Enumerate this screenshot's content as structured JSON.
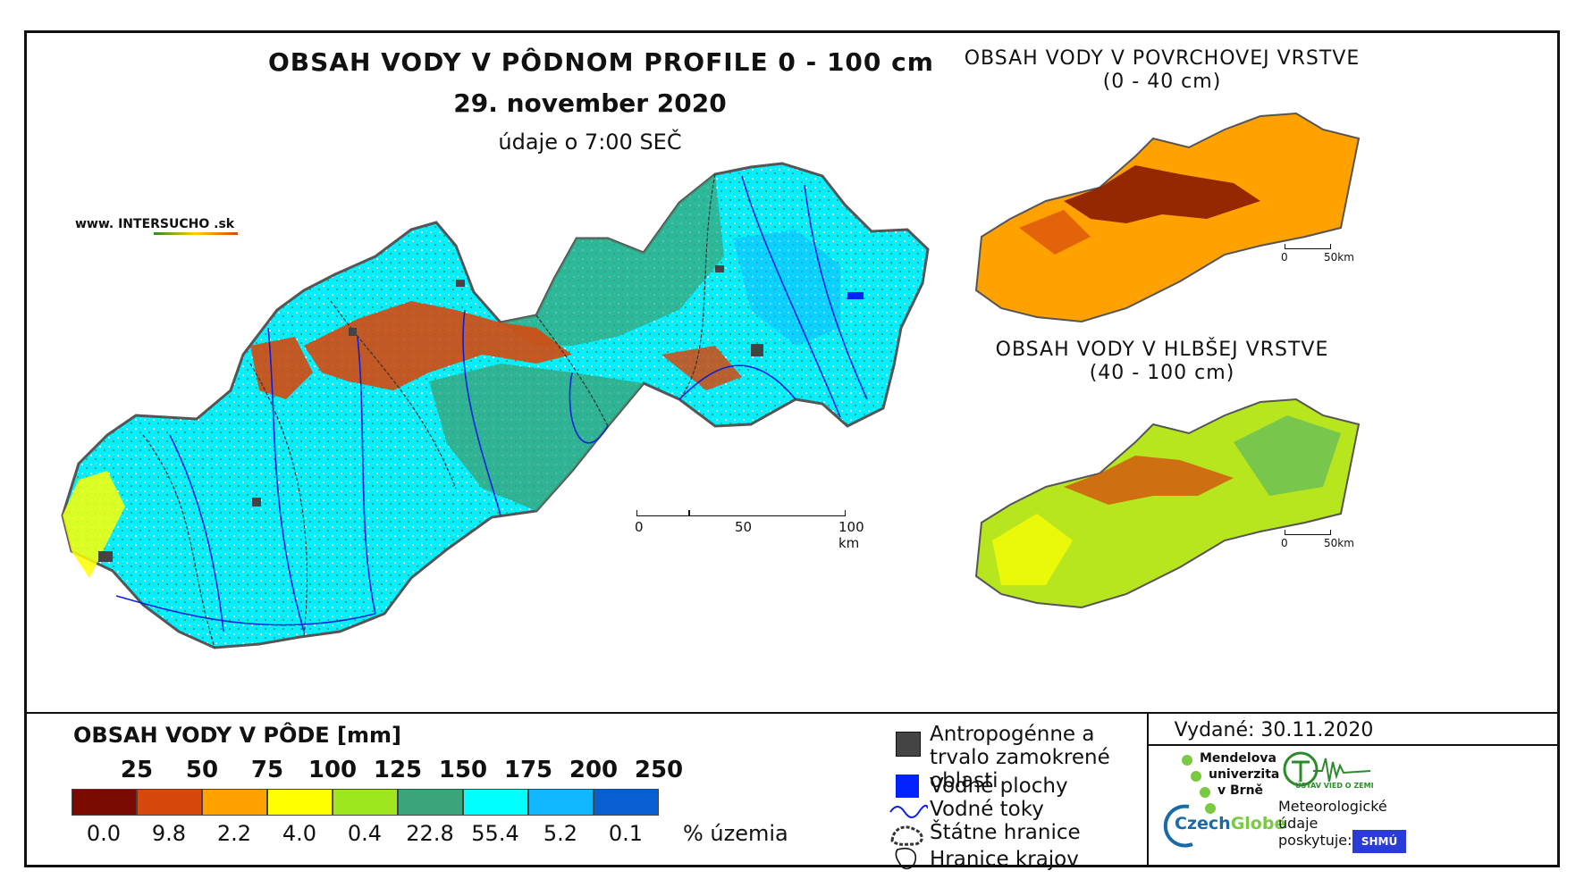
{
  "main": {
    "title": "OBSAH VODY V PÔDNOM PROFILE 0 - 100 cm",
    "date": "29. november 2020",
    "time_note": "údaje o 7:00 SEČ",
    "website": "www. INTERSUCHO .sk",
    "scale": {
      "t0": "0",
      "t1": "50",
      "t2": "100 km"
    }
  },
  "inset_surface": {
    "title_line1": "OBSAH VODY V POVRCHOVEJ VRSTVE",
    "title_line2": "(0 - 40 cm)",
    "scale": {
      "t0": "0",
      "t1": "50km"
    }
  },
  "inset_deep": {
    "title_line1": "OBSAH VODY V HLBŠEJ VRSTVE",
    "title_line2": "(40 - 100 cm)",
    "scale": {
      "t0": "0",
      "t1": "50km"
    }
  },
  "legend": {
    "title": "OBSAH VODY V PÔDE [mm]",
    "class_labels": [
      "25",
      "50",
      "75",
      "100",
      "125",
      "150",
      "175",
      "200",
      "250"
    ],
    "colors": [
      "#7a0a00",
      "#d5480e",
      "#ffa200",
      "#ffff00",
      "#9ee61e",
      "#3aa57a",
      "#00ffff",
      "#12b8ff",
      "#0a5fd0"
    ],
    "percentages": [
      "0.0",
      "9.8",
      "2.2",
      "4.0",
      "0.4",
      "22.8",
      "55.4",
      "5.2",
      "0.1"
    ],
    "pct_unit": "% územia"
  },
  "symbols": {
    "anthropogenic": "Antropogénne a trvalo zamokrené oblasti",
    "water_areas": "Vodné plochy",
    "water_streams": "Vodné toky",
    "state_border": "Štátne hranice",
    "region_border": "Hranice krajov"
  },
  "issued": "Vydané: 30.11.2020",
  "logos": {
    "mendel": [
      "Mendelova",
      "univerzita",
      "v Brně"
    ],
    "czechglobe_a": "Czech",
    "czechglobe_b": "Globe",
    "ustav": "ÚSTAV VIED O ZEMI",
    "meteo": [
      "Meteorologické",
      "údaje",
      "poskytuje:"
    ],
    "shmu": "SHMÚ"
  }
}
